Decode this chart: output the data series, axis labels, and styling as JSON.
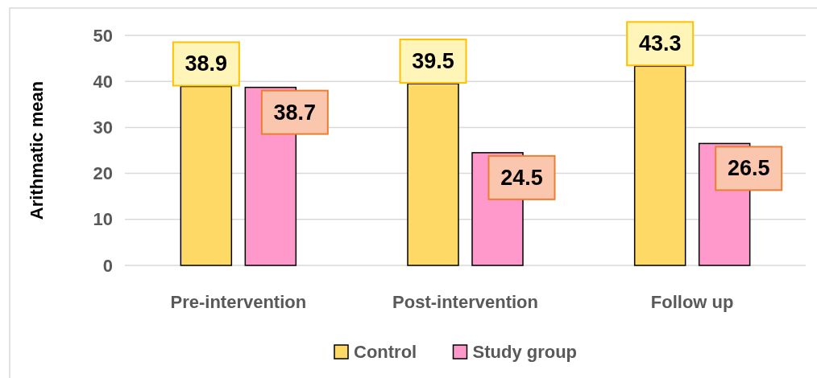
{
  "chart_data": {
    "type": "bar",
    "ylabel": "Arithmatic mean",
    "categories": [
      "Pre-intervention",
      "Post-intervention",
      "Follow up"
    ],
    "series": [
      {
        "name": "Control",
        "color": "#ffd966",
        "values": [
          38.9,
          39.5,
          43.3
        ]
      },
      {
        "name": "Study group",
        "color": "#ff99cc",
        "values": [
          38.7,
          24.5,
          26.5
        ]
      }
    ],
    "ylim": [
      0,
      50
    ],
    "yticks": [
      0,
      10,
      20,
      30,
      40,
      50
    ],
    "grid": "y",
    "legend": "bottom",
    "data_labels": true
  }
}
